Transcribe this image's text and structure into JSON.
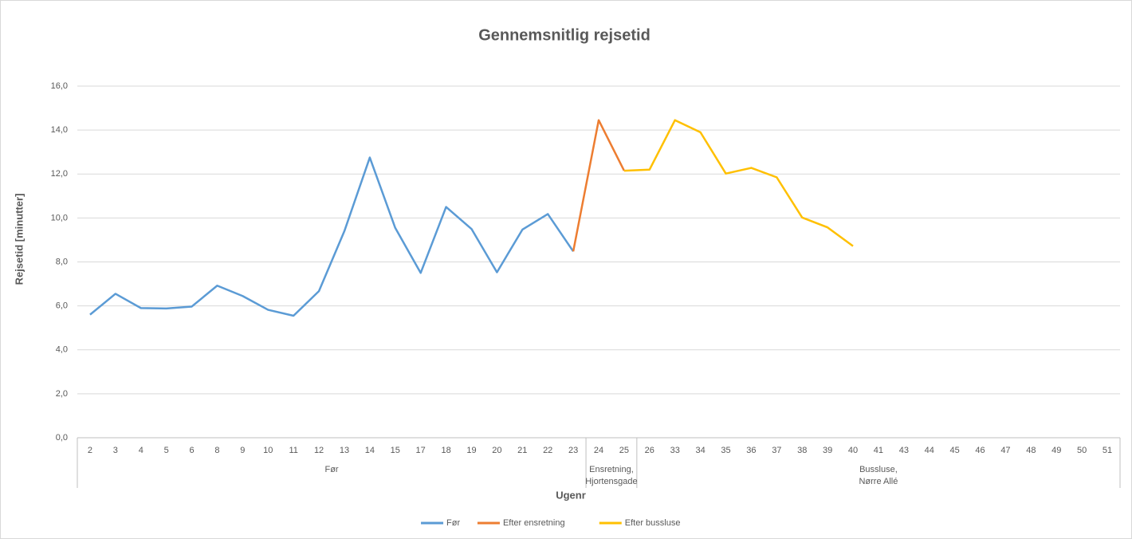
{
  "chart_data": {
    "type": "line",
    "title": "Gennemsnitlig rejsetid",
    "y_label": "Rejsetid [minutter]",
    "x_label": "Ugenr",
    "category_groups": [
      {
        "label": [
          "Før"
        ],
        "categories": [
          "2",
          "3",
          "4",
          "5",
          "6",
          "8",
          "9",
          "10",
          "11",
          "12",
          "13",
          "14",
          "15",
          "17",
          "18",
          "19",
          "20",
          "21",
          "22",
          "23"
        ]
      },
      {
        "label": [
          "Ensretning,",
          "Hjortensgade"
        ],
        "categories": [
          "24",
          "25"
        ]
      },
      {
        "label": [
          "Bussluse,",
          "Nørre Allé"
        ],
        "categories": [
          "26",
          "33",
          "34",
          "35",
          "36",
          "37",
          "38",
          "39",
          "40",
          "41",
          "43",
          "44",
          "45",
          "46",
          "47",
          "48",
          "49",
          "50",
          "51"
        ]
      }
    ],
    "series": [
      {
        "name": "Før",
        "color": "#5b9bd5",
        "values": [
          5.6,
          6.55,
          5.9,
          5.88,
          5.97,
          6.92,
          6.45,
          5.82,
          5.55,
          6.67,
          9.4,
          12.75,
          9.55,
          7.5,
          10.5,
          9.5,
          7.53,
          9.47,
          10.18,
          8.48,
          null,
          null,
          null,
          null,
          null,
          null,
          null,
          null,
          null,
          null,
          null,
          null,
          null,
          null,
          null,
          null,
          null,
          null,
          null,
          null,
          null
        ]
      },
      {
        "name": "Efter ensretning",
        "color": "#ed7d31",
        "values": [
          null,
          null,
          null,
          null,
          null,
          null,
          null,
          null,
          null,
          null,
          null,
          null,
          null,
          null,
          null,
          null,
          null,
          null,
          null,
          8.48,
          14.45,
          12.15,
          null,
          null,
          null,
          null,
          null,
          null,
          null,
          null,
          null,
          null,
          null,
          null,
          null,
          null,
          null,
          null,
          null,
          null,
          null
        ]
      },
      {
        "name": "Efter bussluse",
        "color": "#ffc000",
        "values": [
          null,
          null,
          null,
          null,
          null,
          null,
          null,
          null,
          null,
          null,
          null,
          null,
          null,
          null,
          null,
          null,
          null,
          null,
          null,
          null,
          null,
          12.15,
          12.2,
          14.45,
          13.9,
          12.02,
          12.28,
          11.85,
          10.02,
          9.57,
          8.72,
          null,
          null,
          null,
          null,
          null,
          null,
          null,
          null,
          null,
          null
        ]
      }
    ],
    "ylim": [
      0,
      16
    ],
    "yticks": [
      {
        "value": 0,
        "label": "0,0"
      },
      {
        "value": 2,
        "label": "2,0"
      },
      {
        "value": 4,
        "label": "4,0"
      },
      {
        "value": 6,
        "label": "6,0"
      },
      {
        "value": 8,
        "label": "8,0"
      },
      {
        "value": 10,
        "label": "10,0"
      },
      {
        "value": 12,
        "label": "12,0"
      },
      {
        "value": 14,
        "label": "14,0"
      },
      {
        "value": 16,
        "label": "16,0"
      }
    ],
    "grid": true,
    "legend": "bottom"
  }
}
